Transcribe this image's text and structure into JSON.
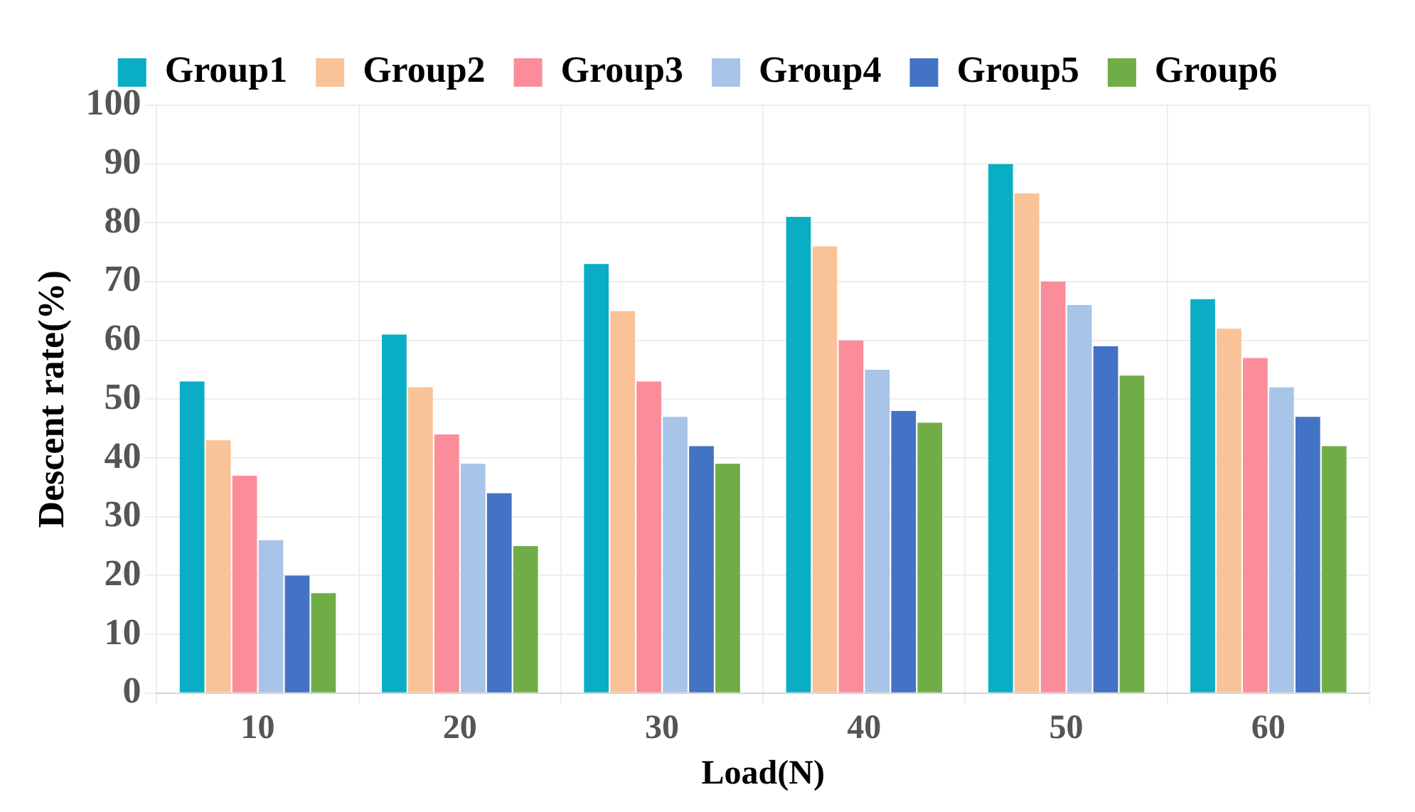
{
  "chart_data": {
    "type": "bar",
    "xlabel": "Load(N)",
    "ylabel": "Descent rate(%)",
    "categories": [
      "10",
      "20",
      "30",
      "40",
      "50",
      "60"
    ],
    "series": [
      {
        "name": "Group1",
        "color": "#0aaec4",
        "values": [
          53,
          61,
          73,
          81,
          90,
          67
        ]
      },
      {
        "name": "Group2",
        "color": "#fac297",
        "values": [
          43,
          52,
          65,
          76,
          85,
          62
        ]
      },
      {
        "name": "Group3",
        "color": "#fb8d9b",
        "values": [
          37,
          44,
          53,
          60,
          70,
          57
        ]
      },
      {
        "name": "Group4",
        "color": "#a8c4e8",
        "values": [
          26,
          39,
          47,
          55,
          66,
          52
        ]
      },
      {
        "name": "Group5",
        "color": "#4472c4",
        "values": [
          20,
          34,
          42,
          48,
          59,
          47
        ]
      },
      {
        "name": "Group6",
        "color": "#70ad47",
        "values": [
          17,
          25,
          39,
          46,
          54,
          42
        ]
      }
    ],
    "ylim": [
      0,
      100
    ],
    "yticks": [
      0,
      10,
      20,
      30,
      40,
      50,
      60,
      70,
      80,
      90,
      100
    ],
    "grid": true,
    "legend": "top"
  }
}
